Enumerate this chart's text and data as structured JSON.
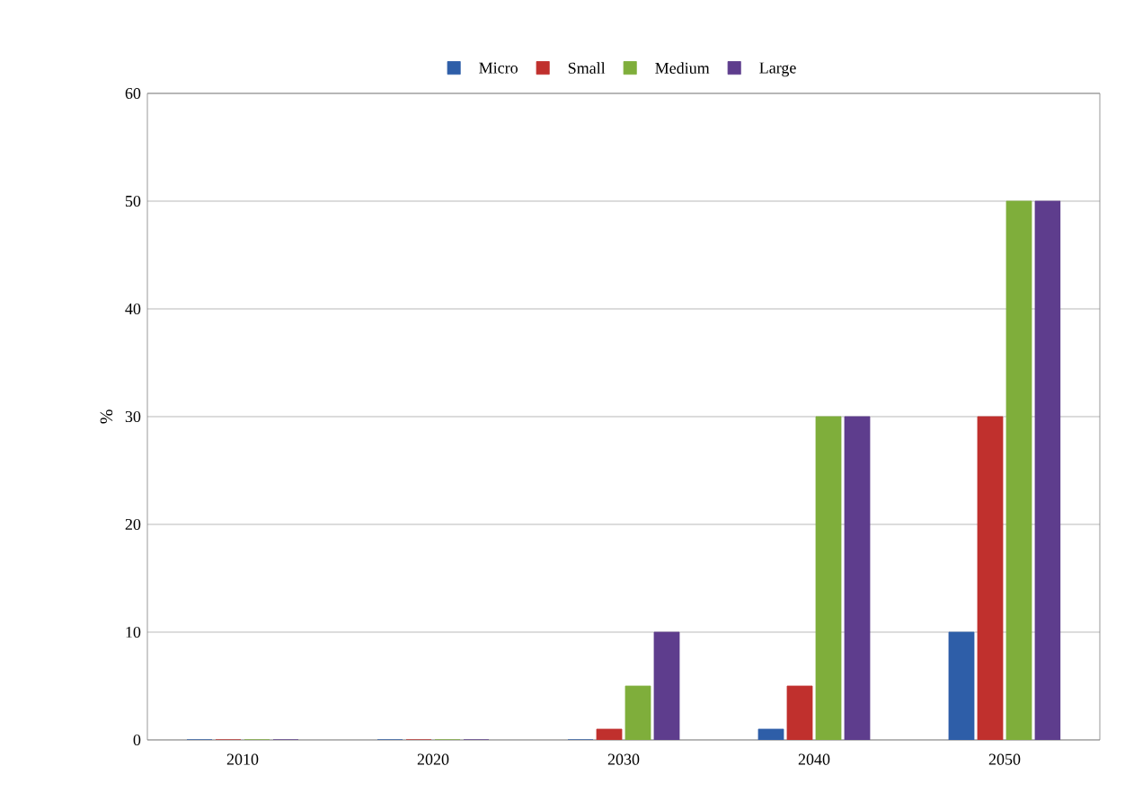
{
  "chart_data": {
    "type": "bar",
    "ylabel": "%",
    "categories": [
      "2010",
      "2020",
      "2030",
      "2040",
      "2050"
    ],
    "series": [
      {
        "name": "Micro",
        "color": "#2e5ea8",
        "values": [
          0,
          0,
          0,
          1,
          10
        ]
      },
      {
        "name": "Small",
        "color": "#c0302d",
        "values": [
          0,
          0,
          1,
          5,
          30
        ]
      },
      {
        "name": "Medium",
        "color": "#7fae3b",
        "values": [
          0,
          0,
          5,
          30,
          50
        ]
      },
      {
        "name": "Large",
        "color": "#5e3d8d",
        "values": [
          0,
          0,
          10,
          30,
          50
        ]
      }
    ],
    "ylim": [
      0,
      60
    ],
    "yticks": [
      0,
      10,
      20,
      30,
      40,
      50,
      60
    ],
    "grid": "y",
    "legend": "top"
  }
}
